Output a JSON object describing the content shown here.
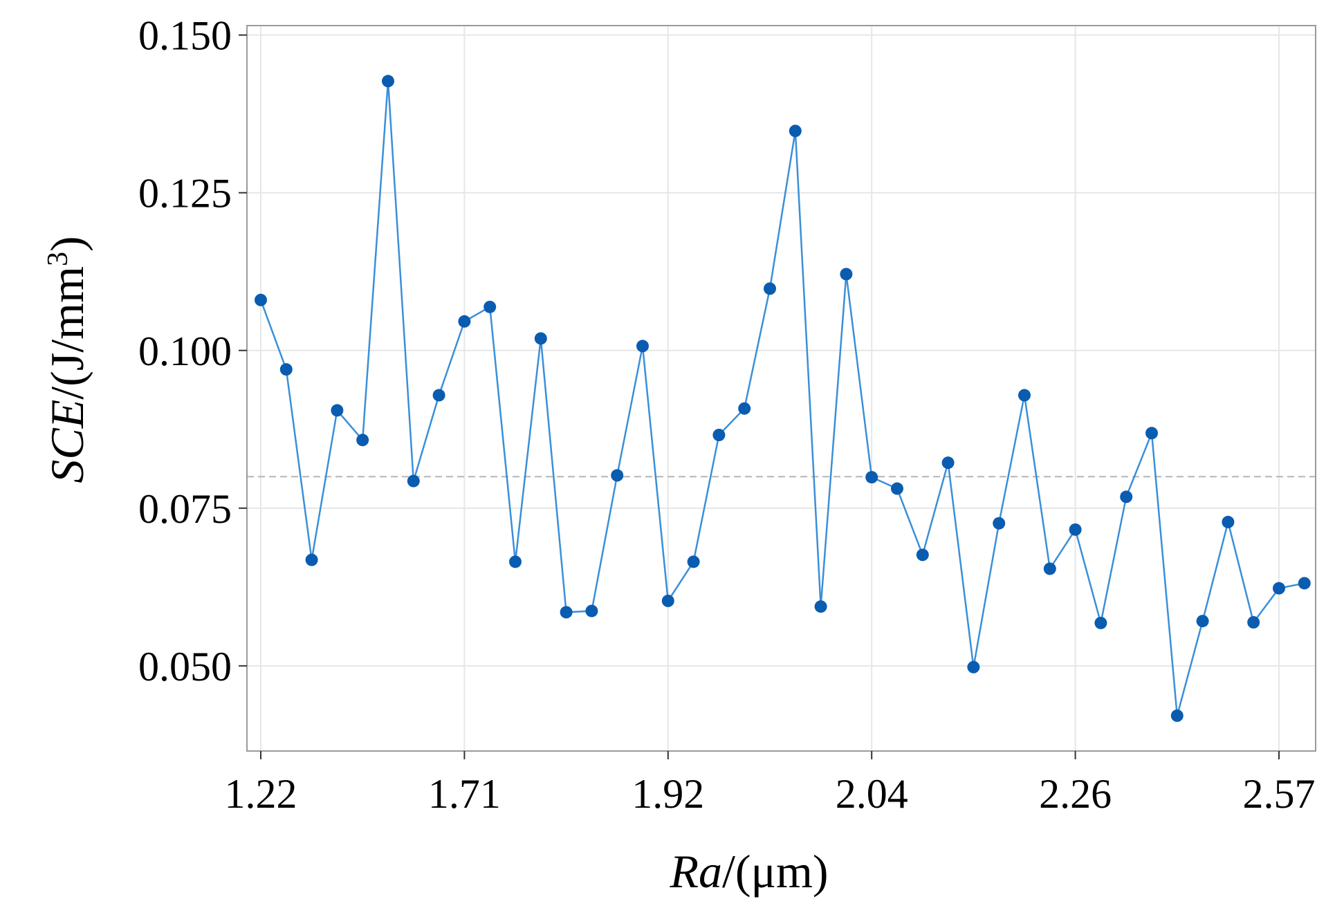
{
  "chart_data": {
    "type": "line",
    "xlabel_italic": "Ra",
    "xlabel_rest": "/(μm)",
    "ylabel_italic": "SCE",
    "ylabel_rest": "/(J/mm",
    "ylabel_sup": "3",
    "ylabel_close": ")",
    "x_ticks": [
      "1.22",
      "1.71",
      "1.92",
      "2.04",
      "2.26",
      "2.57"
    ],
    "x_tick_index": [
      0,
      8,
      16,
      24,
      32,
      40
    ],
    "y_ticks": [
      0.05,
      0.075,
      0.1,
      0.125,
      0.15
    ],
    "y_tick_labels": [
      "0.050",
      "0.075",
      "0.100",
      "0.125",
      "0.150"
    ],
    "ylim": [
      0.0365,
      0.1515
    ],
    "reference_line": 0.08,
    "grid": true,
    "colors": {
      "line": "#3a8fd8",
      "marker": "#0a5cb0",
      "grid": "#e6e6e6",
      "reference": "#b5b5b5",
      "frame": "#9a9a9a"
    },
    "series": [
      {
        "values": [
          0.108,
          0.097,
          0.0668,
          0.0905,
          0.0858,
          0.1427,
          0.0793,
          0.0929,
          0.1046,
          0.1069,
          0.0665,
          0.1019,
          0.0585,
          0.0587,
          0.0802,
          0.1007,
          0.0603,
          0.0665,
          0.0866,
          0.0908,
          0.1098,
          0.1348,
          0.0594,
          0.1121,
          0.0799,
          0.0781,
          0.0676,
          0.0822,
          0.0498,
          0.0726,
          0.0929,
          0.0654,
          0.0716,
          0.0568,
          0.0768,
          0.0869,
          0.0421,
          0.0571,
          0.0728,
          0.0569,
          0.0623,
          0.0631
        ]
      }
    ]
  }
}
